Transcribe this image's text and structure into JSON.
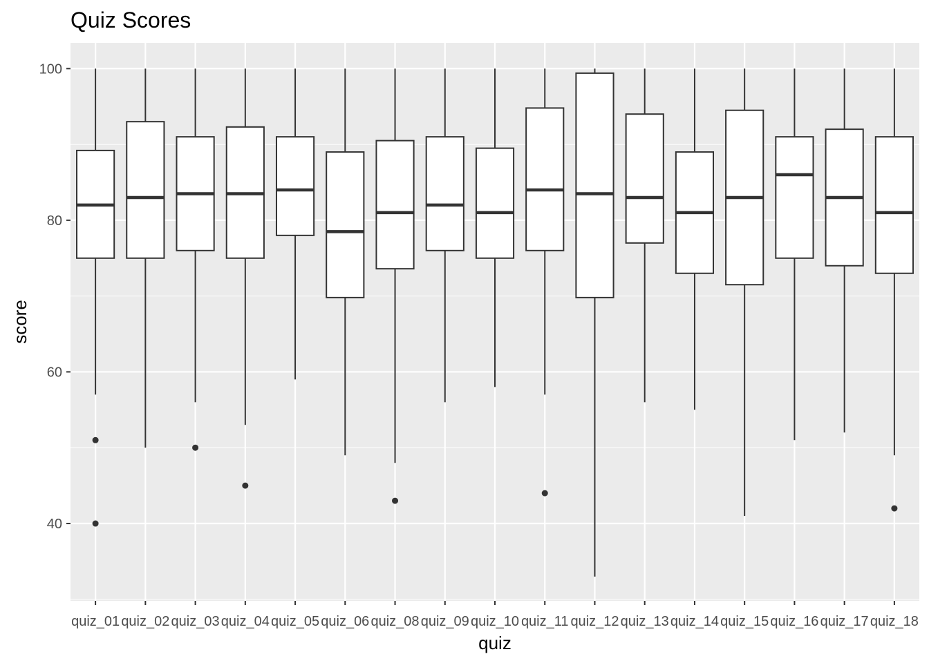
{
  "chart_data": {
    "type": "boxplot",
    "title": "Quiz Scores",
    "xlabel": "quiz",
    "ylabel": "score",
    "ylim": [
      29.8,
      103.4
    ],
    "yticks": [
      40,
      60,
      80,
      100
    ],
    "grid": true,
    "colors": {
      "panel": "#ebebeb",
      "grid": "#ffffff",
      "box_fill": "#ffffff",
      "box_line": "#333333",
      "outlier": "#333333"
    },
    "categories": [
      "quiz_01",
      "quiz_02",
      "quiz_03",
      "quiz_04",
      "quiz_05",
      "quiz_06",
      "quiz_08",
      "quiz_09",
      "quiz_10",
      "quiz_11",
      "quiz_12",
      "quiz_13",
      "quiz_14",
      "quiz_15",
      "quiz_16",
      "quiz_17",
      "quiz_18"
    ],
    "boxes": [
      {
        "whisker_low": 57,
        "q1": 75,
        "median": 82,
        "q3": 89.2,
        "whisker_high": 100,
        "outliers": [
          51,
          40
        ]
      },
      {
        "whisker_low": 50,
        "q1": 75,
        "median": 83,
        "q3": 93,
        "whisker_high": 100,
        "outliers": []
      },
      {
        "whisker_low": 56,
        "q1": 76,
        "median": 83.5,
        "q3": 91,
        "whisker_high": 100,
        "outliers": [
          50
        ]
      },
      {
        "whisker_low": 53,
        "q1": 75,
        "median": 83.5,
        "q3": 92.3,
        "whisker_high": 100,
        "outliers": [
          45
        ]
      },
      {
        "whisker_low": 59,
        "q1": 78,
        "median": 84,
        "q3": 91,
        "whisker_high": 100,
        "outliers": []
      },
      {
        "whisker_low": 49,
        "q1": 69.8,
        "median": 78.5,
        "q3": 89,
        "whisker_high": 100,
        "outliers": []
      },
      {
        "whisker_low": 48,
        "q1": 73.6,
        "median": 81,
        "q3": 90.5,
        "whisker_high": 100,
        "outliers": [
          43
        ]
      },
      {
        "whisker_low": 56,
        "q1": 76,
        "median": 82,
        "q3": 91,
        "whisker_high": 100,
        "outliers": []
      },
      {
        "whisker_low": 58,
        "q1": 75,
        "median": 81,
        "q3": 89.5,
        "whisker_high": 100,
        "outliers": []
      },
      {
        "whisker_low": 57,
        "q1": 76,
        "median": 84,
        "q3": 94.8,
        "whisker_high": 100,
        "outliers": [
          44
        ]
      },
      {
        "whisker_low": 33,
        "q1": 69.8,
        "median": 83.5,
        "q3": 99.4,
        "whisker_high": 100,
        "outliers": []
      },
      {
        "whisker_low": 56,
        "q1": 77,
        "median": 83,
        "q3": 94,
        "whisker_high": 100,
        "outliers": []
      },
      {
        "whisker_low": 55,
        "q1": 73,
        "median": 81,
        "q3": 89,
        "whisker_high": 100,
        "outliers": []
      },
      {
        "whisker_low": 41,
        "q1": 71.5,
        "median": 83,
        "q3": 94.5,
        "whisker_high": 100,
        "outliers": []
      },
      {
        "whisker_low": 51,
        "q1": 75,
        "median": 86,
        "q3": 91,
        "whisker_high": 100,
        "outliers": []
      },
      {
        "whisker_low": 52,
        "q1": 74,
        "median": 83,
        "q3": 92,
        "whisker_high": 100,
        "outliers": []
      },
      {
        "whisker_low": 49,
        "q1": 73,
        "median": 81,
        "q3": 91,
        "whisker_high": 100,
        "outliers": [
          42
        ]
      }
    ]
  }
}
